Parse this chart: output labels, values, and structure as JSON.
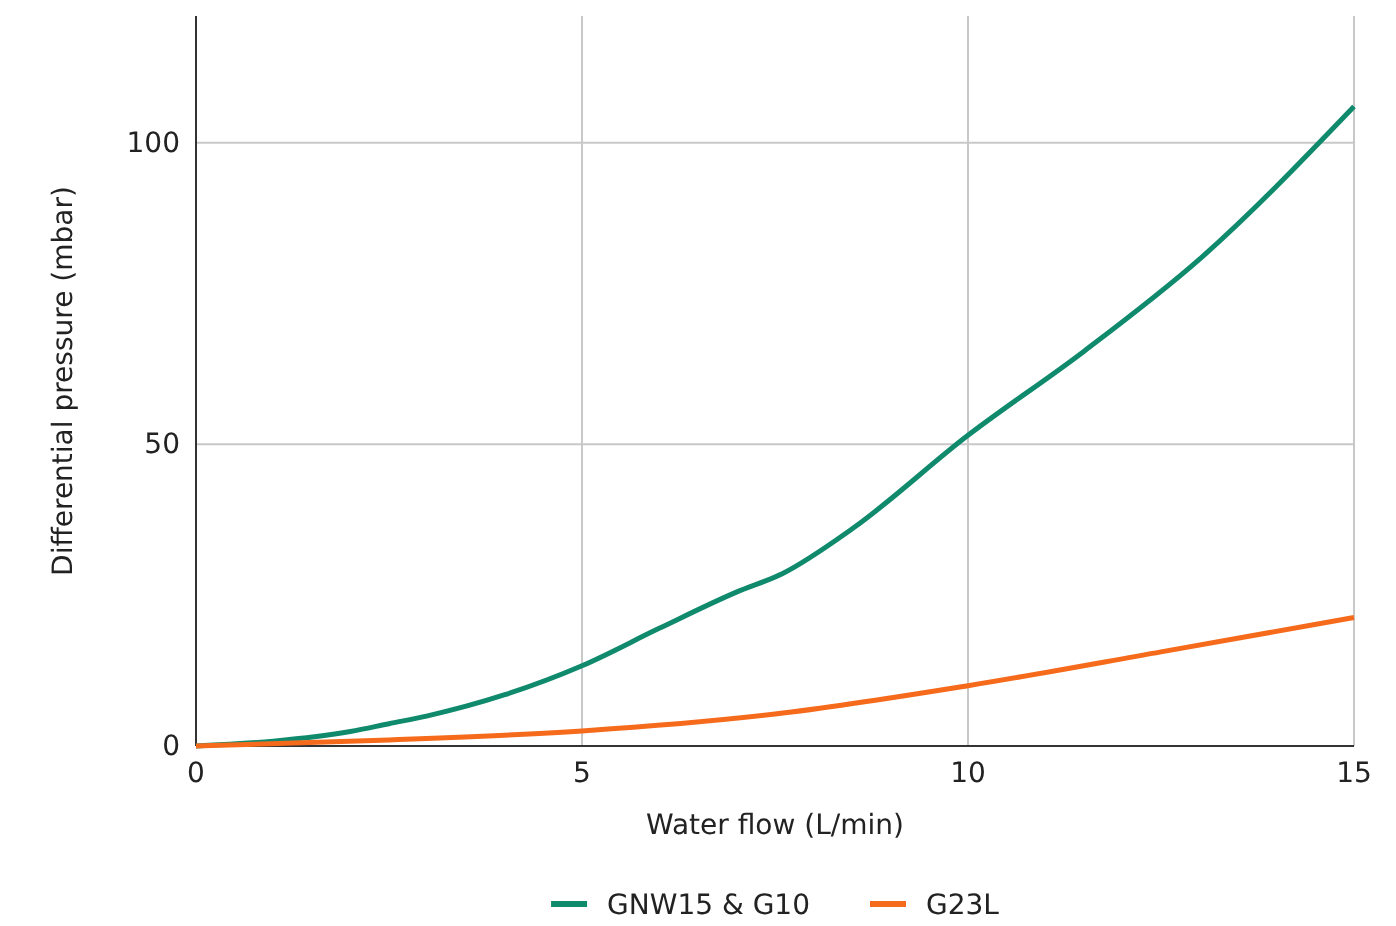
{
  "chart_data": {
    "type": "line",
    "xlabel": "Water flow (L/min)",
    "ylabel": "Differential pressure (mbar)",
    "xlim": [
      0,
      15
    ],
    "xticks": [
      0,
      5,
      10,
      15
    ],
    "ylim": [
      0,
      121
    ],
    "yticks": [
      0,
      50,
      100
    ],
    "grid": true,
    "legend": "bottom",
    "line_style": "solid",
    "series": [
      {
        "name": "GNW15 & G10",
        "color": "#108a6c",
        "x": [
          0,
          1,
          2,
          2.5,
          3,
          4,
          5,
          6,
          7,
          7.6,
          8.5,
          10,
          11.5,
          13,
          15
        ],
        "values": [
          0,
          0.8,
          2.4,
          3.7,
          5,
          8.5,
          13.3,
          19.5,
          25.5,
          28.6,
          36,
          51.5,
          65.4,
          80.7,
          106
        ]
      },
      {
        "name": "G23L",
        "color": "#f66a1c",
        "x": [
          0,
          2.5,
          5,
          7.5,
          10,
          12.5,
          15
        ],
        "values": [
          0,
          1,
          2.5,
          5.3,
          10,
          15.6,
          21.3
        ]
      }
    ]
  }
}
